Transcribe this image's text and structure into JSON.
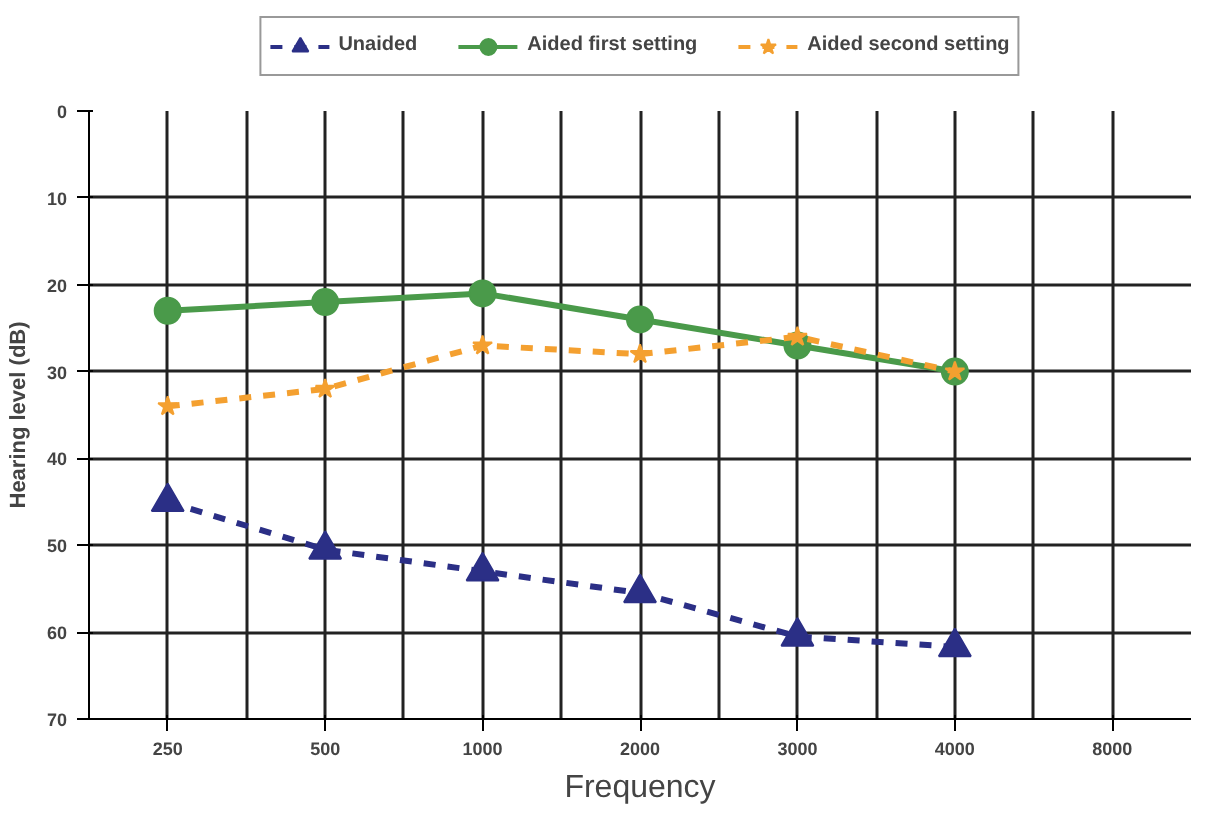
{
  "chart_data": {
    "type": "line",
    "xlabel": "Frequency",
    "ylabel": "Hearing level (dB)",
    "categories": [
      "250",
      "500",
      "1000",
      "2000",
      "3000",
      "4000",
      "8000"
    ],
    "ylim": [
      70,
      0
    ],
    "yticks": [
      0,
      10,
      20,
      30,
      40,
      50,
      60,
      70
    ],
    "grid": true,
    "legend": "top",
    "series": [
      {
        "name": "Unaided",
        "color": "#2b2f86",
        "marker": "triangle",
        "line_style": "dashed",
        "values": [
          45,
          50.5,
          53,
          55.5,
          60.5,
          61.7,
          null
        ]
      },
      {
        "name": "Aided first setting",
        "color": "#4a9a4a",
        "marker": "circle",
        "line_style": "solid",
        "values": [
          23,
          22,
          21,
          24,
          27,
          30,
          null
        ]
      },
      {
        "name": "Aided second setting",
        "color": "#f4a030",
        "marker": "star",
        "line_style": "dashed",
        "values": [
          34,
          32,
          27,
          28,
          26,
          30,
          null
        ]
      }
    ]
  }
}
